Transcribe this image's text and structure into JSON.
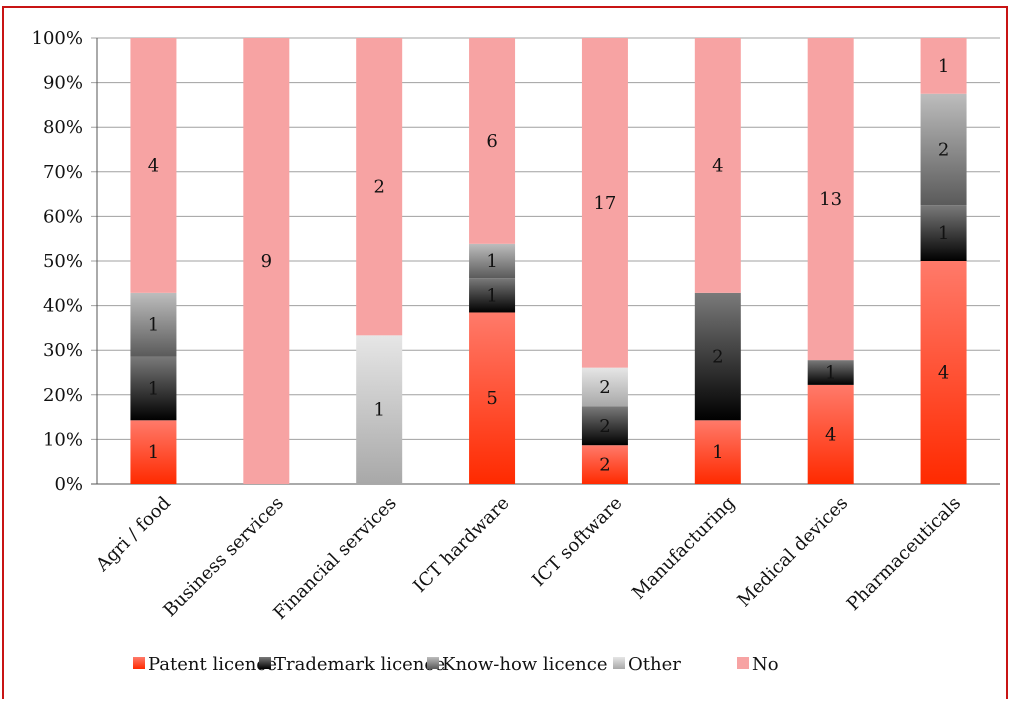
{
  "chart_data": {
    "type": "bar",
    "stacked": true,
    "percent": true,
    "categories": [
      "Agri / food",
      "Business services",
      "Financial services",
      "ICT hardware",
      "ICT software",
      "Manufacturing",
      "Medical devices",
      "Pharmaceuticals"
    ],
    "series": [
      {
        "name": "Patent licence",
        "values": [
          1,
          0,
          0,
          5,
          2,
          1,
          4,
          4
        ],
        "color": "#e8281e"
      },
      {
        "name": "Trademark licence",
        "values": [
          1,
          0,
          0,
          1,
          2,
          2,
          1,
          1
        ],
        "color": "#2a2a2a"
      },
      {
        "name": "Know-how licence",
        "values": [
          1,
          0,
          0,
          1,
          0,
          0,
          0,
          2
        ],
        "color": "#8c8c8c"
      },
      {
        "name": "Other",
        "values": [
          0,
          0,
          1,
          0,
          2,
          0,
          0,
          0
        ],
        "color": "#cccccc"
      },
      {
        "name": "No",
        "values": [
          4,
          9,
          2,
          6,
          17,
          4,
          13,
          1
        ],
        "color": "#f7a3a3"
      }
    ],
    "ylim": [
      0,
      100
    ],
    "yticks": [
      "0%",
      "10%",
      "20%",
      "30%",
      "40%",
      "50%",
      "60%",
      "70%",
      "80%",
      "90%",
      "100%"
    ],
    "grid": true,
    "legend": "bottom",
    "title": "",
    "xlabel": "",
    "ylabel": ""
  }
}
